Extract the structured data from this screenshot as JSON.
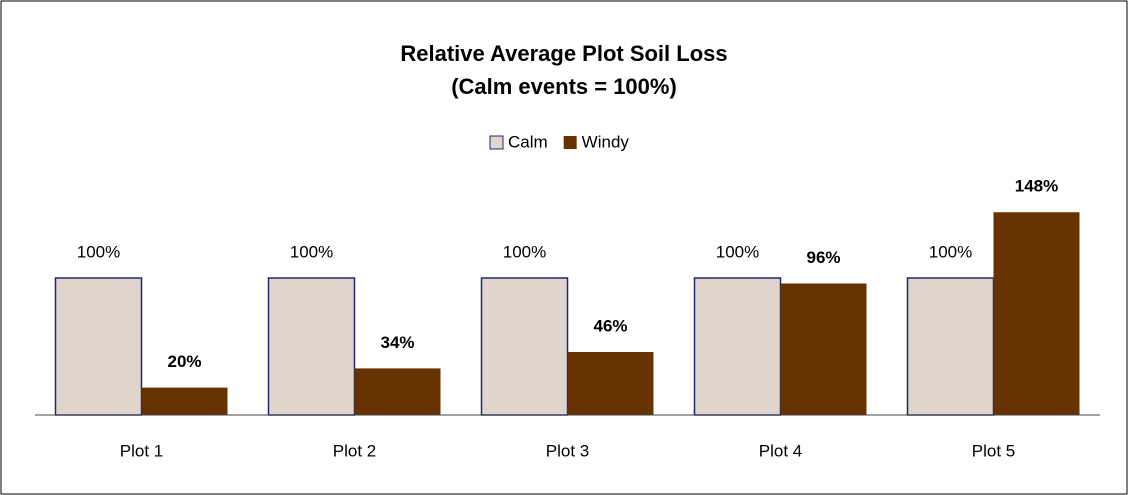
{
  "chart_data": {
    "type": "bar",
    "title": "Relative Average Plot Soil Loss",
    "subtitle": "(Calm events = 100%)",
    "categories": [
      "Plot 1",
      "Plot 2",
      "Plot 3",
      "Plot 4",
      "Plot 5"
    ],
    "series": [
      {
        "name": "Calm",
        "color": "#dfd5cc",
        "values": [
          100,
          100,
          100,
          100,
          100
        ],
        "value_labels": [
          "100%",
          "100%",
          "100%",
          "100%",
          "100%"
        ]
      },
      {
        "name": "Windy",
        "color": "#663300",
        "values": [
          20,
          34,
          46,
          96,
          148
        ],
        "value_labels": [
          "20%",
          "34%",
          "46%",
          "96%",
          "148%"
        ]
      }
    ],
    "legend": "top"
  }
}
